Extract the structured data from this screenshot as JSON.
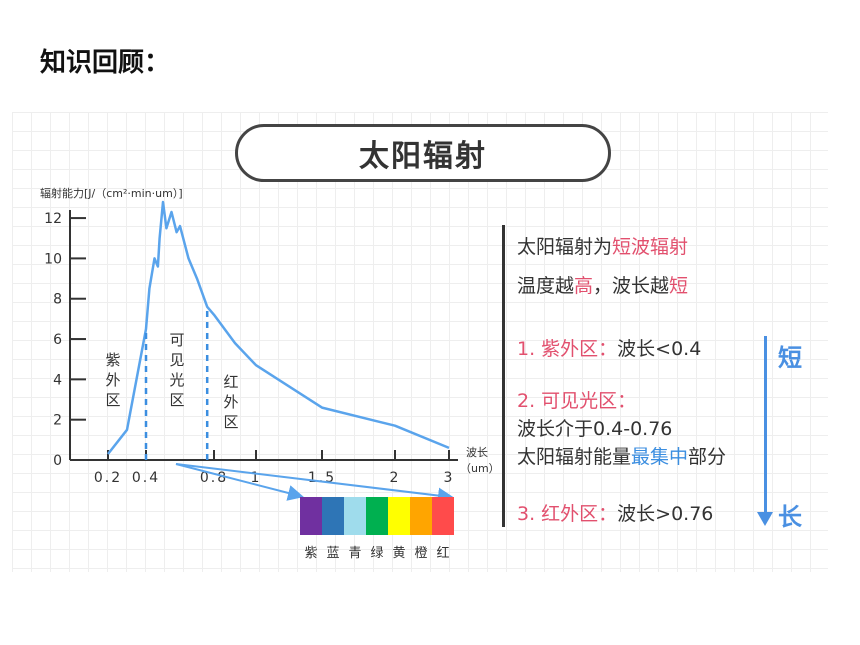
{
  "heading": "知识回顾：",
  "title": "太阳辐射",
  "chart_data": {
    "type": "line",
    "ylabel": "辐射能力[J/（cm²·min·um）]",
    "xlabel": "波长（um）",
    "xlabel_line1": "波长",
    "xlabel_line2": "（um）",
    "xlim": [
      0,
      3
    ],
    "ylim": [
      0,
      12.5
    ],
    "y_ticks": [
      0,
      2,
      4,
      6,
      8,
      10,
      12
    ],
    "y_tick_labels": [
      "0",
      "2",
      "4",
      "6",
      "8",
      "10",
      "12"
    ],
    "x_ticks": [
      0.2,
      0.4,
      0.8,
      1,
      1.5,
      2,
      3
    ],
    "x_tick_labels": [
      "0.2",
      "0.4",
      "0.8",
      "1",
      "1.5",
      "2",
      "3"
    ],
    "series": [
      {
        "x": [
          0.2,
          0.3,
          0.35,
          0.4,
          0.42,
          0.45,
          0.47,
          0.48,
          0.5,
          0.52,
          0.55,
          0.58,
          0.6,
          0.65,
          0.7,
          0.76,
          0.8,
          0.9,
          1.0,
          1.5,
          2.0,
          3.0
        ],
        "y": [
          0.3,
          1.5,
          4.0,
          6.5,
          8.5,
          10.0,
          9.6,
          11.0,
          12.8,
          11.5,
          12.3,
          11.3,
          11.6,
          10.0,
          9.0,
          7.6,
          7.2,
          5.8,
          4.7,
          2.6,
          1.7,
          0.6
        ]
      }
    ],
    "dividers": [
      0.4,
      0.76
    ],
    "regions": [
      {
        "label": [
          "紫",
          "外",
          "区"
        ]
      },
      {
        "label": [
          "可",
          "见",
          "光",
          "区"
        ]
      },
      {
        "label": [
          "红",
          "外",
          "区"
        ]
      }
    ]
  },
  "spectrum": {
    "colors": [
      "#7030a0",
      "#2e75b6",
      "#9fdcec",
      "#00b050",
      "#ffff00",
      "#ffa500",
      "#ff4b4b"
    ],
    "labels": [
      "紫",
      "蓝",
      "青",
      "绿",
      "黄",
      "橙",
      "红"
    ]
  },
  "info": {
    "line1_a": "太阳辐射为",
    "line1_b": "短波辐射",
    "line2_a": "温度越",
    "line2_b": "高",
    "line2_c": "，波长越",
    "line2_d": "短",
    "item1_a": "1. 紫外区：",
    "item1_b": "波长<0.4",
    "item2_a": "2. 可见光区：",
    "item2_b": "波长介于0.4-0.76",
    "item2_c": "太阳辐射能量",
    "item2_d": "最集中",
    "item2_e": "部分",
    "item3_a": "3. 红外区：",
    "item3_b": "波长>0.76",
    "short": "短",
    "long": "长"
  }
}
